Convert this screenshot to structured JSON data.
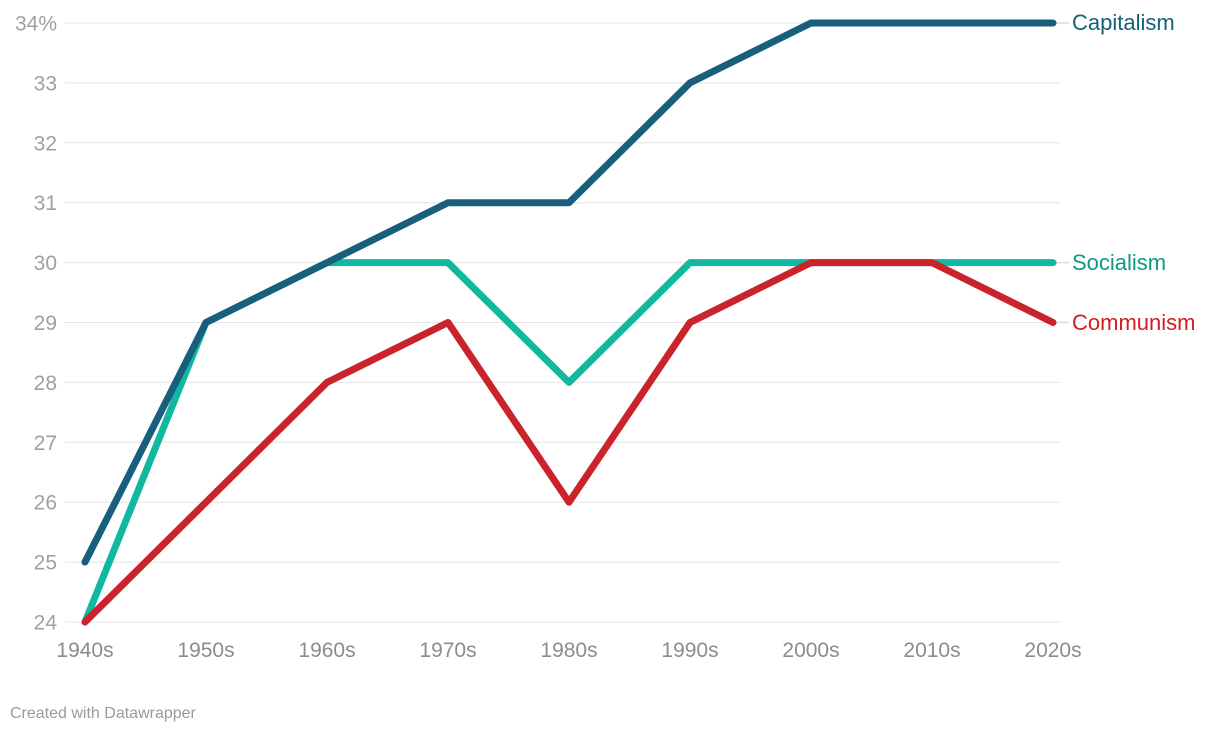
{
  "chart_data": {
    "type": "line",
    "categories": [
      "1940s",
      "1950s",
      "1960s",
      "1970s",
      "1980s",
      "1990s",
      "2000s",
      "2010s",
      "2020s"
    ],
    "series": [
      {
        "name": "Capitalism",
        "values": [
          25,
          29,
          30,
          31,
          31,
          33,
          34,
          34,
          34
        ],
        "color": "#175F7D",
        "label_color": "#15607A"
      },
      {
        "name": "Socialism",
        "values": [
          24,
          29,
          30,
          30,
          28,
          30,
          30,
          30,
          30
        ],
        "color": "#10B89F",
        "label_color": "#0A9B84"
      },
      {
        "name": "Communism",
        "values": [
          24,
          26,
          28,
          29,
          26,
          29,
          30,
          30,
          29
        ],
        "color": "#CA232C",
        "label_color": "#D41C21"
      }
    ],
    "draw_order": [
      "Socialism",
      "Communism",
      "Capitalism"
    ],
    "y_axis": {
      "min": 24,
      "max": 34,
      "step": 1,
      "top_tick_label": "34%",
      "tick_color": "#A0A0A0"
    },
    "x_axis": {
      "tick_color": "#8C8C8C"
    },
    "grid": true,
    "grid_color": "#E4E4E4",
    "legend_position": "right",
    "title": "",
    "xlabel": "",
    "ylabel": ""
  },
  "footer": {
    "text": "Created with Datawrapper"
  }
}
